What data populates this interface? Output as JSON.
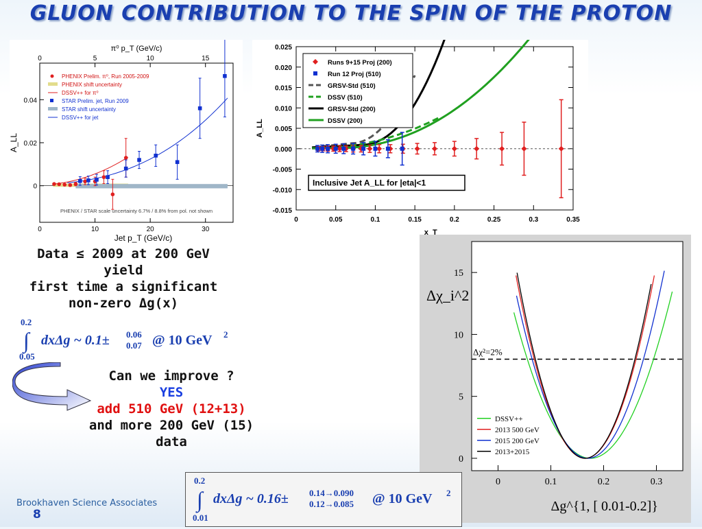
{
  "title": "GLUON CONTRIBUTION TO THE SPIN OF THE PROTON",
  "footer": "Brookhaven Science Associates",
  "page_number": "8",
  "left_text": {
    "line1": "Data ≤ 2009 at 200 GeV",
    "line2": "yield",
    "line3": "first time a significant",
    "line4": "non-zero Δg(x)"
  },
  "eq1": {
    "upper": "0.2",
    "lower": "0.05",
    "body": "dxΔg ~ 0.1±",
    "sup": "0.06",
    "sub": "0.07",
    "tail": "@ 10 GeV",
    "pow": "2"
  },
  "improve": {
    "question": "Can we improve ?",
    "yes": "YES",
    "add": "add 510 GeV (12+13)",
    "more": "and more 200 GeV (15)",
    "data": "data"
  },
  "eq2": {
    "upper": "0.2",
    "lower": "0.01",
    "body": "dxΔg ~ 0.16±",
    "sup": "0.14→0.090",
    "sub": "0.12→0.085",
    "tail": "@ 10 GeV",
    "pow": "2"
  },
  "chart_data": [
    {
      "type": "scatter",
      "top_xlabel": "π⁰ p_T (GeV/c)",
      "xlabel": "Jet p_T (GeV/c)",
      "ylabel": "A_LL",
      "xlim": [
        0,
        35
      ],
      "ylim": [
        -0.017,
        0.057
      ],
      "top_xlim": [
        0,
        17.5
      ],
      "top_ticks": [
        "0",
        "5",
        "10",
        "15"
      ],
      "x_ticks": [
        "0",
        "10",
        "20",
        "30"
      ],
      "y_ticks": [
        "0",
        "0.02",
        "0.04"
      ],
      "legend": [
        "PHENIX Prelim. π⁰, Run 2005-2009",
        "PHENIX shift uncertainty",
        "DSSV++ for π⁰",
        "STAR Prelim. jet, Run 2009",
        "STAR shift uncertainty",
        "DSSV++ for jet"
      ],
      "note": "PHENIX / STAR scale uncertainty 6.7% / 8.8% from pol. not shown",
      "series": [
        {
          "name": "PHENIX Prelim. π⁰, Run 2005-2009",
          "color": "#e02020",
          "points": [
            [
              2.6,
              0.0008,
              0.0004
            ],
            [
              3.5,
              0.0007,
              0.0004
            ],
            [
              4.5,
              0.0005,
              0.0005
            ],
            [
              5.5,
              0.0003,
              0.0006
            ],
            [
              6.5,
              0.0008,
              0.0008
            ],
            [
              8.2,
              0.002,
              0.0015
            ],
            [
              10.0,
              0.002,
              0.002
            ],
            [
              11.6,
              0.004,
              0.003
            ],
            [
              13.2,
              -0.004,
              0.007
            ],
            [
              15.6,
              0.013,
              0.009
            ]
          ]
        },
        {
          "name": "STAR Prelim. jet, Run 2009",
          "color": "#1030d0",
          "points": [
            [
              7.3,
              0.0022,
              0.002
            ],
            [
              8.8,
              0.0025,
              0.002
            ],
            [
              10.3,
              0.0028,
              0.0025
            ],
            [
              12.3,
              0.004,
              0.003
            ],
            [
              15.6,
              0.008,
              0.004
            ],
            [
              18.0,
              0.012,
              0.004
            ],
            [
              21.0,
              0.014,
              0.005
            ],
            [
              24.9,
              0.011,
              0.008
            ],
            [
              29.0,
              0.036,
              0.014
            ],
            [
              33.5,
              0.051,
              0.019
            ]
          ]
        }
      ]
    },
    {
      "type": "scatter",
      "xlabel": "x_T",
      "ylabel": "A_LL",
      "xlim": [
        0,
        0.35
      ],
      "ylim": [
        -0.015,
        0.025
      ],
      "x_ticks": [
        "0",
        "0.05",
        "0.1",
        "0.15",
        "0.2",
        "0.25",
        "0.3",
        "0.35"
      ],
      "y_ticks": [
        "-0.015",
        "-0.010",
        "-0.005",
        "0.000",
        "0.005",
        "0.010",
        "0.015",
        "0.020",
        "0.025"
      ],
      "legend": [
        "Runs 9+15 Proj (200)",
        "Run 12 Proj (510)",
        "GRSV-Std (510)",
        "DSSV (510)",
        "GRSV-Std (200)",
        "DSSV (200)"
      ],
      "annotation": "Inclusive Jet A_LL for |eta|<1",
      "series": [
        {
          "name": "Runs 9+15 Proj (200)",
          "color": "#e02020",
          "points": [
            [
              0.028,
              0,
              0.0005
            ],
            [
              0.034,
              0,
              0.0005
            ],
            [
              0.04,
              0,
              0.0006
            ],
            [
              0.047,
              0,
              0.0006
            ],
            [
              0.055,
              0,
              0.0007
            ],
            [
              0.063,
              0,
              0.0007
            ],
            [
              0.072,
              0,
              0.0008
            ],
            [
              0.082,
              0,
              0.0008
            ],
            [
              0.093,
              0,
              0.0009
            ],
            [
              0.105,
              0,
              0.001
            ],
            [
              0.119,
              0,
              0.001
            ],
            [
              0.135,
              0,
              0.0011
            ],
            [
              0.153,
              0,
              0.0013
            ],
            [
              0.175,
              0,
              0.0015
            ],
            [
              0.2,
              0,
              0.0018
            ],
            [
              0.228,
              0,
              0.0025
            ],
            [
              0.26,
              0,
              0.004
            ],
            [
              0.288,
              0,
              0.0065
            ],
            [
              0.335,
              0,
              0.012
            ]
          ]
        },
        {
          "name": "Run 12 Proj (510)",
          "color": "#1030d0",
          "points": [
            [
              0.027,
              0,
              0.0008
            ],
            [
              0.033,
              0,
              0.0009
            ],
            [
              0.04,
              0,
              0.001
            ],
            [
              0.05,
              0,
              0.0011
            ],
            [
              0.06,
              0,
              0.0012
            ],
            [
              0.072,
              0,
              0.0013
            ],
            [
              0.085,
              0,
              0.0015
            ],
            [
              0.1,
              0,
              0.0018
            ],
            [
              0.116,
              0,
              0.0022
            ],
            [
              0.134,
              0,
              0.004
            ]
          ]
        }
      ]
    },
    {
      "type": "line",
      "xlabel": "Δg^{1, [ 0.01-0.2]}",
      "ylabel": "Δχ_i^2",
      "xlim": [
        -0.05,
        0.35
      ],
      "ylim": [
        -1,
        17.5
      ],
      "x_ticks": [
        "0",
        "0.1",
        "0.2",
        "0.3"
      ],
      "y_ticks": [
        "0",
        "5",
        "10",
        "15"
      ],
      "threshold_label": "Δχ²=2%",
      "threshold_value": 8,
      "legend": [
        "DSSV++",
        "2013 500 GeV",
        "2015 200 GeV",
        "2013+2015"
      ],
      "series": [
        {
          "name": "DSSV++",
          "color": "#20d020"
        },
        {
          "name": "2013 500 GeV",
          "color": "#e02020"
        },
        {
          "name": "2015 200 GeV",
          "color": "#1030d0"
        },
        {
          "name": "2013+2015",
          "color": "#000000"
        }
      ]
    }
  ]
}
